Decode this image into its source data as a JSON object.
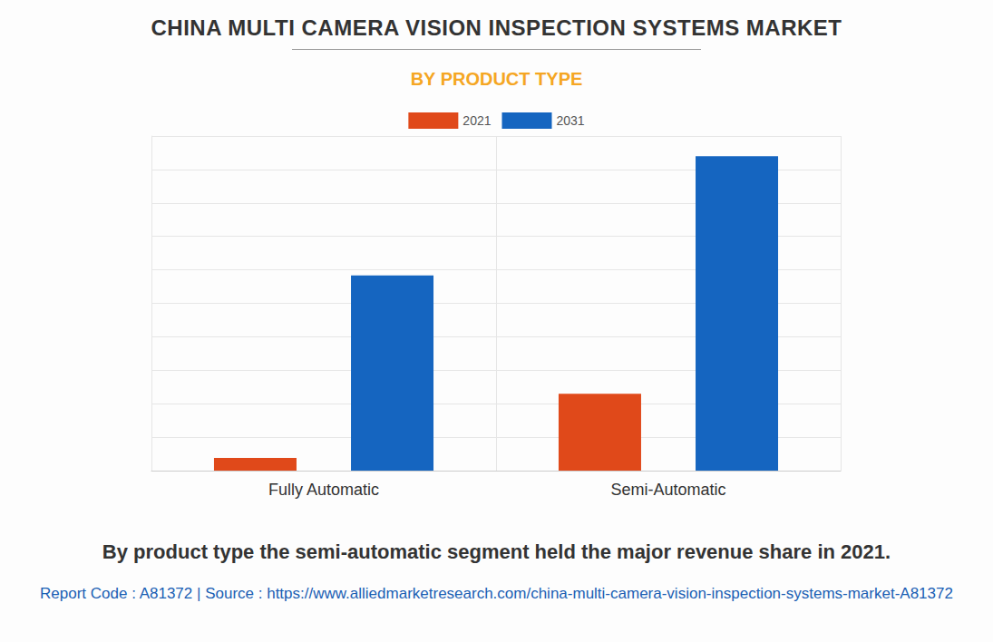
{
  "chart_data": {
    "type": "bar",
    "title": "CHINA MULTI CAMERA VISION INSPECTION SYSTEMS MARKET",
    "subtitle": "BY PRODUCT TYPE",
    "caption": "By product type the semi-automatic segment held the major revenue share in 2021.",
    "source": "Report Code : A81372  |  Source : https://www.alliedmarketresearch.com/china-multi-camera-vision-inspection-systems-market-A81372",
    "categories": [
      "Fully Automatic",
      "Semi-Automatic"
    ],
    "series": [
      {
        "name": "2021",
        "color": "#e0491a",
        "values": [
          0.38,
          2.3
        ]
      },
      {
        "name": "2031",
        "color": "#1565c0",
        "values": [
          5.83,
          9.4
        ]
      }
    ],
    "ylim": [
      0,
      10
    ],
    "yticks": [
      0,
      1,
      2,
      3,
      4,
      5,
      6,
      7,
      8,
      9,
      10
    ],
    "grid": true,
    "legend": "top",
    "tick_labels": "x"
  }
}
